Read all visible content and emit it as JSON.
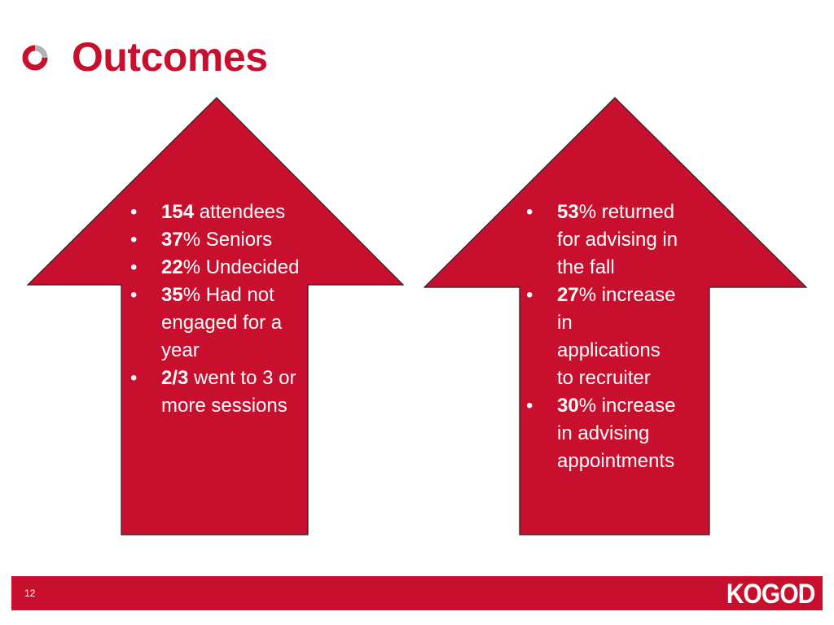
{
  "slide": {
    "title": "Outcomes",
    "page_number": "12",
    "logo": "KOGOD"
  },
  "left_arrow": {
    "items": [
      {
        "bold": "154",
        "rest": " attendees"
      },
      {
        "bold": "37",
        "rest": "% Seniors"
      },
      {
        "bold": "22",
        "rest": "% Undecided"
      },
      {
        "bold": "35",
        "rest": "% Had not engaged for a year"
      },
      {
        "bold": "2/3",
        "rest": " went to 3 or more sessions"
      }
    ]
  },
  "right_arrow": {
    "items": [
      {
        "bold": "53",
        "rest": "% returned for advising in the fall"
      },
      {
        "bold": "27",
        "rest": "% increase in applications to recruiter"
      },
      {
        "bold": "30",
        "rest": "% increase in advising appointments"
      }
    ]
  },
  "colors": {
    "brand_red": "#c8102e",
    "text_on_red": "#ffffff",
    "icon_gray": "#b3b3b3"
  },
  "icons": {
    "title_bullet": "ring-icon"
  }
}
